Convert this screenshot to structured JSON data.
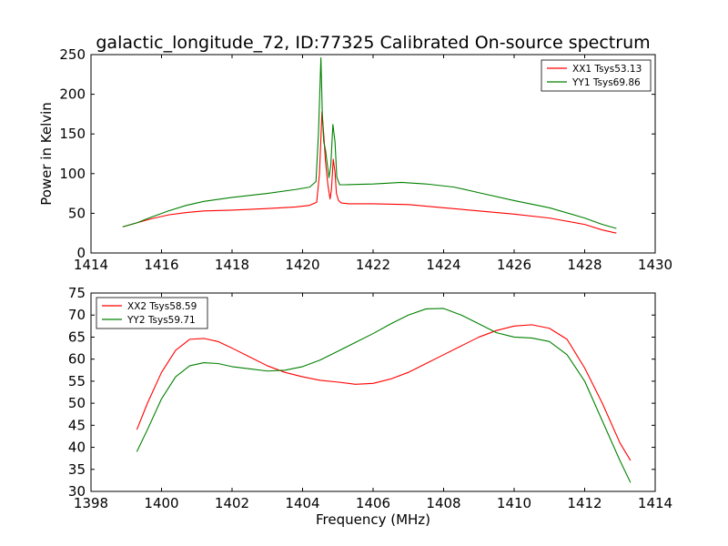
{
  "figure": {
    "title": "galactic_longitude_72, ID:77325 Calibrated On-source spectrum"
  },
  "chart_data": [
    {
      "type": "line",
      "title": "galactic_longitude_72, ID:77325 Calibrated On-source spectrum",
      "xlabel": "",
      "ylabel": "Power in Kelvin",
      "xlim": [
        1414,
        1430
      ],
      "ylim": [
        0,
        250
      ],
      "xticks": [
        1414,
        1416,
        1418,
        1420,
        1422,
        1424,
        1426,
        1428,
        1430
      ],
      "yticks": [
        0,
        50,
        100,
        150,
        200,
        250
      ],
      "grid": false,
      "legend": "top-right",
      "series": [
        {
          "name": "XX1 Tsys53.13",
          "color": "#ff0000",
          "x": [
            1414.9,
            1415.3,
            1415.7,
            1416.2,
            1416.7,
            1417.2,
            1418.0,
            1419.0,
            1419.8,
            1420.2,
            1420.4,
            1420.48,
            1420.55,
            1420.6,
            1420.65,
            1420.72,
            1420.78,
            1420.82,
            1420.87,
            1420.92,
            1420.96,
            1421.02,
            1421.1,
            1421.3,
            1422.0,
            1423.0,
            1424.0,
            1425.0,
            1426.0,
            1427.0,
            1428.0,
            1428.5,
            1428.9
          ],
          "y": [
            33,
            38,
            43,
            48,
            51,
            53,
            54,
            56,
            58,
            60,
            64,
            100,
            178,
            150,
            115,
            85,
            68,
            80,
            118,
            102,
            75,
            66,
            63,
            62,
            62,
            61,
            57,
            53,
            49,
            44,
            36,
            29,
            25
          ]
        },
        {
          "name": "YY1 Tsys69.86",
          "color": "#008000",
          "x": [
            1414.9,
            1415.3,
            1415.7,
            1416.2,
            1416.7,
            1417.2,
            1418.0,
            1419.0,
            1419.8,
            1420.2,
            1420.38,
            1420.45,
            1420.52,
            1420.56,
            1420.6,
            1420.65,
            1420.7,
            1420.75,
            1420.8,
            1420.86,
            1420.92,
            1420.97,
            1421.05,
            1421.2,
            1422.0,
            1422.8,
            1423.5,
            1424.3,
            1425.0,
            1426.0,
            1427.0,
            1428.0,
            1428.5,
            1428.9
          ],
          "y": [
            33,
            38,
            45,
            53,
            60,
            65,
            70,
            75,
            80,
            83,
            90,
            150,
            246,
            175,
            140,
            130,
            112,
            95,
            110,
            162,
            140,
            96,
            86,
            86,
            87,
            89,
            87,
            83,
            76,
            66,
            57,
            44,
            36,
            31
          ]
        }
      ]
    },
    {
      "type": "line",
      "title": "",
      "xlabel": "Frequency (MHz)",
      "ylabel": "",
      "xlim": [
        1398,
        1414
      ],
      "ylim": [
        30,
        75
      ],
      "xticks": [
        1398,
        1400,
        1402,
        1404,
        1406,
        1408,
        1410,
        1412,
        1414
      ],
      "yticks": [
        30,
        35,
        40,
        45,
        50,
        55,
        60,
        65,
        70,
        75
      ],
      "grid": false,
      "legend": "top-left",
      "series": [
        {
          "name": "XX2 Tsys58.59",
          "color": "#ff0000",
          "x": [
            1399.3,
            1399.6,
            1400.0,
            1400.4,
            1400.8,
            1401.2,
            1401.6,
            1402.0,
            1402.5,
            1403.0,
            1403.5,
            1404.0,
            1404.5,
            1405.0,
            1405.5,
            1406.0,
            1406.5,
            1407.0,
            1407.5,
            1408.0,
            1408.5,
            1409.0,
            1409.5,
            1410.0,
            1410.5,
            1411.0,
            1411.5,
            1412.0,
            1412.5,
            1413.0,
            1413.3
          ],
          "y": [
            44,
            50,
            57,
            62,
            64.5,
            64.7,
            64,
            62.5,
            60.5,
            58.5,
            57,
            56,
            55.2,
            54.8,
            54.3,
            54.5,
            55.5,
            57,
            59,
            61,
            63,
            65,
            66.5,
            67.5,
            67.8,
            67,
            64.5,
            58,
            50,
            41,
            37
          ]
        },
        {
          "name": "YY2 Tsys59.71",
          "color": "#008000",
          "x": [
            1399.3,
            1399.6,
            1400.0,
            1400.4,
            1400.8,
            1401.2,
            1401.6,
            1402.0,
            1402.5,
            1403.0,
            1403.5,
            1404.0,
            1404.5,
            1405.0,
            1405.5,
            1406.0,
            1406.5,
            1407.0,
            1407.5,
            1408.0,
            1408.5,
            1409.0,
            1409.5,
            1410.0,
            1410.5,
            1411.0,
            1411.5,
            1412.0,
            1412.5,
            1413.0,
            1413.3
          ],
          "y": [
            39,
            44,
            51,
            56,
            58.5,
            59.2,
            59,
            58.3,
            57.8,
            57.3,
            57.5,
            58.3,
            59.8,
            61.8,
            63.8,
            65.8,
            68,
            70,
            71.4,
            71.5,
            70,
            68,
            66,
            65,
            64.8,
            64,
            61,
            55,
            46,
            37,
            32
          ]
        }
      ]
    }
  ]
}
